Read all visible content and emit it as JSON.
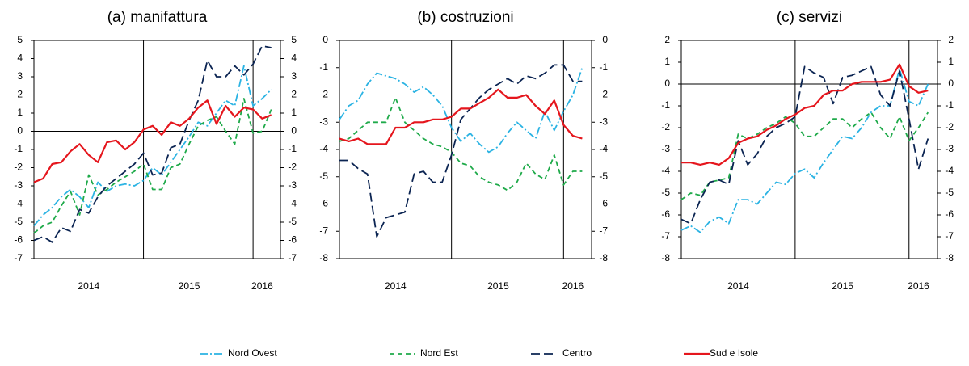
{
  "chart_data": [
    {
      "type": "line",
      "title": "(a) manifattura",
      "categories": [
        null,
        null,
        null,
        null,
        null,
        null,
        "2014",
        null,
        null,
        null,
        null,
        null,
        null,
        null,
        null,
        null,
        null,
        "2015",
        null,
        null,
        null,
        null,
        null,
        null,
        null,
        "2016",
        null
      ],
      "ylim": [
        -7,
        5
      ],
      "yticks": [
        -7,
        -6,
        -5,
        -4,
        -3,
        -2,
        -1,
        0,
        1,
        2,
        3,
        4,
        5
      ],
      "y2lim": [
        -7,
        5
      ],
      "y2ticks": [
        -7,
        -6,
        -5,
        -4,
        -3,
        -2,
        -1,
        0,
        1,
        2,
        3,
        4,
        5
      ],
      "series": [
        {
          "name": "Nord Ovest",
          "color": "#2bb3e3",
          "values": [
            -5.2,
            -4.6,
            -4.2,
            -3.6,
            -3.2,
            -3.6,
            -4.2,
            -2.8,
            -3.3,
            -3.0,
            -2.9,
            -3.0,
            -2.7,
            -2.0,
            -2.4,
            -1.7,
            -1.0,
            -0.3,
            0.5,
            0.3,
            1.0,
            1.7,
            1.4,
            3.6,
            1.4,
            1.8,
            2.3
          ]
        },
        {
          "name": "Nord Est",
          "color": "#1faa4a",
          "values": [
            -5.6,
            -5.2,
            -5.0,
            -4.1,
            -3.3,
            -4.6,
            -2.4,
            -3.5,
            -3.2,
            -2.8,
            -2.5,
            -2.2,
            -1.8,
            -3.2,
            -3.2,
            -2.0,
            -1.8,
            -0.7,
            0.3,
            0.6,
            0.8,
            0.0,
            -0.7,
            1.8,
            -0.1,
            0.0,
            1.2
          ]
        },
        {
          "name": "Centro",
          "color": "#0b2452",
          "values": [
            -6.0,
            -5.8,
            -6.1,
            -5.3,
            -5.5,
            -4.3,
            -4.5,
            -3.6,
            -3.0,
            -2.6,
            -2.2,
            -1.8,
            -1.2,
            -2.4,
            -2.3,
            -0.9,
            -0.7,
            0.6,
            1.7,
            3.9,
            3.0,
            3.0,
            3.6,
            3.1,
            3.7,
            4.7,
            4.6
          ]
        },
        {
          "name": "Sud e Isole",
          "color": "#e5161d",
          "values": [
            -2.8,
            -2.6,
            -1.8,
            -1.7,
            -1.1,
            -0.7,
            -1.3,
            -1.7,
            -0.6,
            -0.5,
            -1.0,
            -0.6,
            0.1,
            0.3,
            -0.2,
            0.5,
            0.3,
            0.7,
            1.3,
            1.7,
            0.4,
            1.4,
            0.8,
            1.3,
            1.2,
            0.7,
            0.9
          ]
        }
      ]
    },
    {
      "type": "line",
      "title": "(b) costruzioni",
      "categories": [
        null,
        null,
        null,
        null,
        null,
        null,
        "2014",
        null,
        null,
        null,
        null,
        null,
        null,
        null,
        null,
        null,
        null,
        "2015",
        null,
        null,
        null,
        null,
        null,
        null,
        null,
        "2016",
        null
      ],
      "ylim": [
        -8,
        0
      ],
      "yticks": [
        -8,
        -7,
        -6,
        -5,
        -4,
        -3,
        -2,
        -1,
        0
      ],
      "y2lim": [
        -8,
        0
      ],
      "y2ticks": [
        -8,
        -7,
        -6,
        -5,
        -4,
        -3,
        -2,
        -1,
        0
      ],
      "series": [
        {
          "name": "Nord Ovest",
          "color": "#2bb3e3",
          "values": [
            -2.9,
            -2.4,
            -2.2,
            -1.6,
            -1.2,
            -1.3,
            -1.4,
            -1.6,
            -1.9,
            -1.7,
            -2.0,
            -2.4,
            -3.2,
            -3.7,
            -3.4,
            -3.8,
            -4.1,
            -3.9,
            -3.4,
            -3.0,
            -3.3,
            -3.6,
            -2.6,
            -3.3,
            -2.6,
            -2.0,
            -1.0
          ]
        },
        {
          "name": "Nord Est",
          "color": "#1faa4a",
          "values": [
            -3.7,
            -3.6,
            -3.3,
            -3.0,
            -3.0,
            -3.0,
            -2.1,
            -3.0,
            -3.3,
            -3.6,
            -3.8,
            -3.9,
            -4.1,
            -4.5,
            -4.6,
            -5.0,
            -5.2,
            -5.3,
            -5.5,
            -5.2,
            -4.5,
            -4.9,
            -5.1,
            -4.2,
            -5.3,
            -4.8,
            -4.8
          ]
        },
        {
          "name": "Centro",
          "color": "#0b2452",
          "values": [
            -4.4,
            -4.4,
            -4.7,
            -4.9,
            -7.2,
            -6.5,
            -6.4,
            -6.3,
            -4.9,
            -4.8,
            -5.2,
            -5.2,
            -4.2,
            -2.9,
            -2.5,
            -2.1,
            -1.8,
            -1.6,
            -1.4,
            -1.6,
            -1.3,
            -1.4,
            -1.2,
            -0.9,
            -0.9,
            -1.5,
            -1.5
          ]
        },
        {
          "name": "Sud e Isole",
          "color": "#e5161d",
          "values": [
            -3.6,
            -3.7,
            -3.6,
            -3.8,
            -3.8,
            -3.8,
            -3.2,
            -3.2,
            -3.0,
            -3.0,
            -2.9,
            -2.9,
            -2.8,
            -2.5,
            -2.5,
            -2.3,
            -2.1,
            -1.8,
            -2.1,
            -2.1,
            -2.0,
            -2.4,
            -2.7,
            -2.2,
            -3.1,
            -3.5,
            -3.6
          ]
        }
      ]
    },
    {
      "type": "line",
      "title": "(c) servizi",
      "categories": [
        null,
        null,
        null,
        null,
        null,
        null,
        "2014",
        null,
        null,
        null,
        null,
        null,
        null,
        null,
        null,
        null,
        null,
        "2015",
        null,
        null,
        null,
        null,
        null,
        null,
        null,
        "2016",
        null
      ],
      "ylim": [
        -8,
        2
      ],
      "yticks": [
        -8,
        -7,
        -6,
        -5,
        -4,
        -3,
        -2,
        -1,
        0,
        1,
        2
      ],
      "y2lim": [
        -8,
        2
      ],
      "y2ticks": [
        -8,
        -7,
        -6,
        -5,
        -4,
        -3,
        -2,
        -1,
        0,
        1,
        2
      ],
      "series": [
        {
          "name": "Nord Ovest",
          "color": "#2bb3e3",
          "values": [
            -6.7,
            -6.5,
            -6.8,
            -6.3,
            -6.1,
            -6.4,
            -5.3,
            -5.3,
            -5.5,
            -5.0,
            -4.5,
            -4.6,
            -4.1,
            -3.9,
            -4.3,
            -3.6,
            -3.0,
            -2.4,
            -2.5,
            -2.0,
            -1.3,
            -1.0,
            -1.0,
            0.7,
            -0.8,
            -1.0,
            0.0
          ]
        },
        {
          "name": "Nord Est",
          "color": "#1faa4a",
          "values": [
            -5.3,
            -5.0,
            -5.1,
            -4.5,
            -4.4,
            -4.3,
            -2.3,
            -2.5,
            -2.3,
            -2.0,
            -1.8,
            -1.5,
            -1.8,
            -2.4,
            -2.4,
            -2.0,
            -1.6,
            -1.6,
            -2.0,
            -1.6,
            -1.3,
            -2.0,
            -2.5,
            -1.5,
            -2.6,
            -2.0,
            -1.3
          ]
        },
        {
          "name": "Centro",
          "color": "#0b2452",
          "values": [
            -6.2,
            -6.4,
            -5.3,
            -4.5,
            -4.4,
            -4.6,
            -2.6,
            -3.7,
            -3.2,
            -2.4,
            -2.0,
            -1.8,
            -1.5,
            0.8,
            0.5,
            0.3,
            -0.9,
            0.3,
            0.4,
            0.6,
            0.8,
            -0.5,
            -1.0,
            0.6,
            -1.6,
            -3.9,
            -2.5
          ]
        },
        {
          "name": "Sud e Isole",
          "color": "#e5161d",
          "values": [
            -3.6,
            -3.6,
            -3.7,
            -3.6,
            -3.7,
            -3.4,
            -2.7,
            -2.5,
            -2.4,
            -2.1,
            -1.9,
            -1.6,
            -1.4,
            -1.1,
            -1.0,
            -0.5,
            -0.3,
            -0.3,
            0.0,
            0.1,
            0.1,
            0.1,
            0.2,
            0.9,
            -0.1,
            -0.4,
            -0.3
          ]
        }
      ]
    }
  ]
}
